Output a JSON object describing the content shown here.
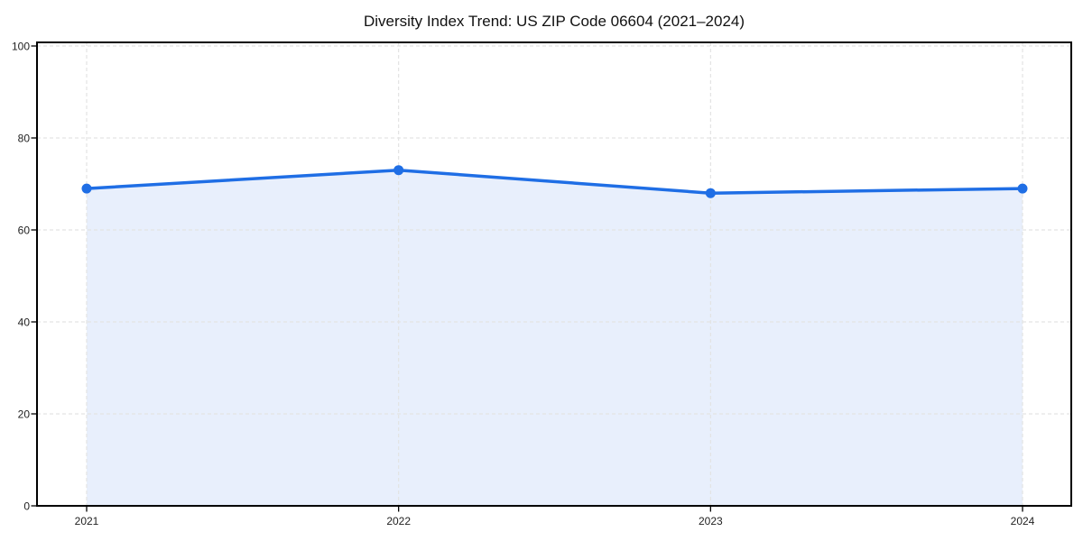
{
  "chart_data": {
    "type": "area",
    "title": "Diversity Index Trend: US ZIP Code 06604 (2021–2024)",
    "x": [
      2021,
      2022,
      2023,
      2024
    ],
    "values": [
      69,
      73,
      68,
      69
    ],
    "xticks": [
      "2021",
      "2022",
      "2023",
      "2024"
    ],
    "yticks": [
      0,
      20,
      40,
      60,
      80,
      100
    ],
    "ylim": [
      0,
      100
    ],
    "xlabel": "",
    "ylabel": "",
    "grid": true,
    "grid_style": "dashed",
    "legend": false,
    "colors": {
      "line": "#1f6ee5",
      "marker": "#1f6ee5",
      "fill": "#e8effc",
      "grid": "#e3e3e3",
      "axis": "#000000",
      "tick_label": "#222222",
      "title": "#111111",
      "background": "#ffffff"
    }
  }
}
